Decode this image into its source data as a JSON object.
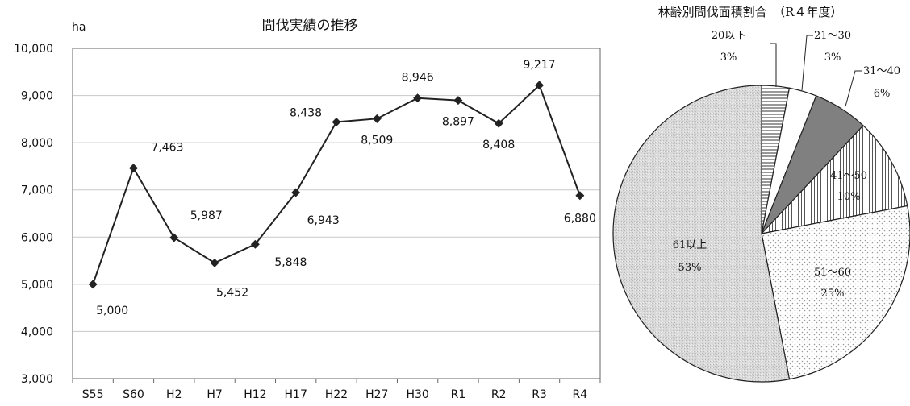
{
  "chart_data": [
    {
      "type": "line",
      "title": "間伐実績の推移",
      "ylabel": "ha",
      "xlabel": "",
      "ylim": [
        3000,
        10000
      ],
      "yticks": [
        3000,
        4000,
        5000,
        6000,
        7000,
        8000,
        9000,
        10000
      ],
      "ytick_labels": [
        "3,000",
        "4,000",
        "5,000",
        "6,000",
        "7,000",
        "8,000",
        "9,000",
        "10,000"
      ],
      "grid": "horizontal",
      "categories": [
        "S55",
        "S60",
        "H2",
        "H7",
        "H12",
        "H17",
        "H22",
        "H27",
        "H30",
        "R1",
        "R2",
        "R3",
        "R4"
      ],
      "series": [
        {
          "values": [
            5000,
            7463,
            5987,
            5452,
            5848,
            6943,
            8438,
            8509,
            8946,
            8897,
            8408,
            9217,
            6880
          ],
          "labels": [
            "5,000",
            "7,463",
            "5,987",
            "5,452",
            "5,848",
            "6,943",
            "8,438",
            "8,509",
            "8,946",
            "8,897",
            "8,408",
            "9,217",
            "6,880"
          ],
          "marker": "diamond",
          "color": "#222222"
        }
      ]
    },
    {
      "type": "pie",
      "title": "林齢別間伐面積割合　（R４年度）",
      "slices": [
        {
          "label": "20以下",
          "value": 3,
          "value_label": "3%",
          "pattern": "hlines"
        },
        {
          "label": "21～30",
          "value": 3,
          "value_label": "3%",
          "pattern": "white"
        },
        {
          "label": "31～40",
          "value": 6,
          "value_label": "6%",
          "pattern": "darkgray"
        },
        {
          "label": "41～50",
          "value": 10,
          "value_label": "10%",
          "pattern": "vlines"
        },
        {
          "label": "51～60",
          "value": 25,
          "value_label": "25%",
          "pattern": "dots"
        },
        {
          "label": "61以上",
          "value": 53,
          "value_label": "53%",
          "pattern": "grain"
        }
      ]
    }
  ]
}
